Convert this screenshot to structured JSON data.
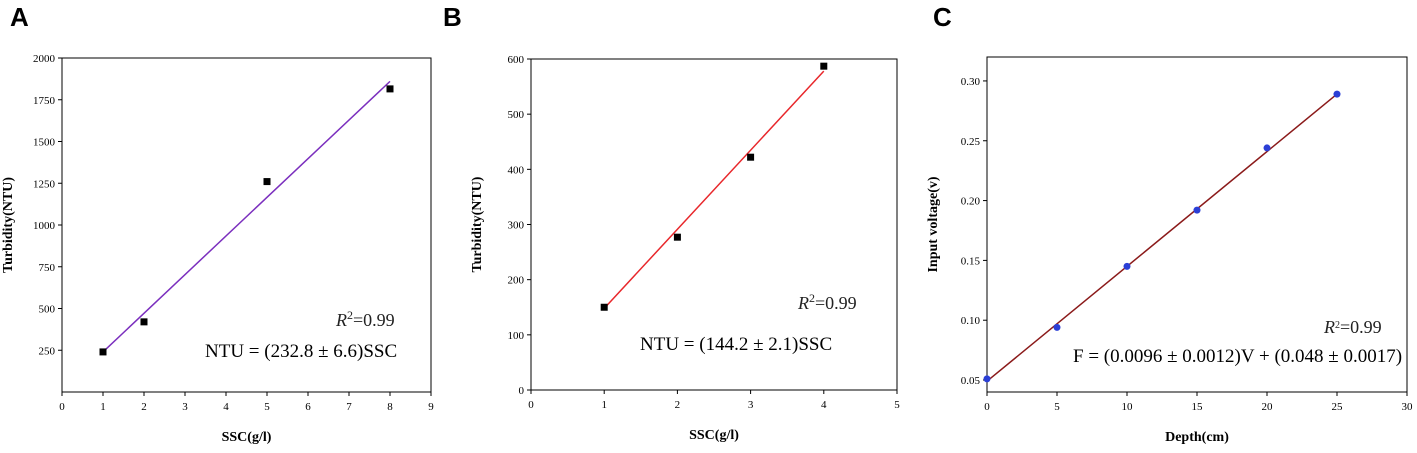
{
  "chart_data": [
    {
      "type": "scatter",
      "panel": "A",
      "xlabel": "SSC(g/l)",
      "ylabel": "Turbidity(NTU)",
      "xlim": [
        0,
        9
      ],
      "ylim": [
        0,
        2000
      ],
      "xticks": [
        0,
        1,
        2,
        3,
        4,
        5,
        6,
        7,
        8,
        9
      ],
      "yticks": [
        250,
        500,
        750,
        1000,
        1250,
        1500,
        1750,
        2000
      ],
      "points": {
        "x": [
          1,
          2,
          5,
          8
        ],
        "y": [
          240,
          420,
          1260,
          1815
        ],
        "marker": "square",
        "color": "#000000"
      },
      "fit": {
        "x": [
          1,
          8
        ],
        "y": [
          240,
          1860
        ],
        "color": "#7b2fbe"
      },
      "r2": "0.99",
      "equation": "NTU = (232.8 ± 6.6)SSC"
    },
    {
      "type": "scatter",
      "panel": "B",
      "xlabel": "SSC(g/l)",
      "ylabel": "Turbidity(NTU)",
      "xlim": [
        0,
        5
      ],
      "ylim": [
        0,
        600
      ],
      "xticks": [
        0,
        1,
        2,
        3,
        4,
        5
      ],
      "yticks": [
        0,
        100,
        200,
        300,
        400,
        500,
        600
      ],
      "points": {
        "x": [
          1,
          2,
          3,
          4
        ],
        "y": [
          150,
          277,
          422,
          587
        ],
        "marker": "square",
        "color": "#000000"
      },
      "fit": {
        "x": [
          1,
          4
        ],
        "y": [
          148,
          578
        ],
        "color": "#e8272b"
      },
      "r2": "0.99",
      "equation": "NTU = (144.2 ± 2.1)SSC"
    },
    {
      "type": "scatter",
      "panel": "C",
      "xlabel": "Depth(cm)",
      "ylabel": "Input voltage(v)",
      "xlim": [
        0,
        30
      ],
      "ylim": [
        0.04,
        0.32
      ],
      "xticks": [
        0,
        5,
        10,
        15,
        20,
        25,
        30
      ],
      "yticks": [
        0.05,
        0.1,
        0.15,
        0.2,
        0.25,
        0.3
      ],
      "ytick_labels": [
        "0.05",
        "0.10",
        "0.15",
        "0.20",
        "0.25",
        "0.30"
      ],
      "points": {
        "x": [
          0,
          5,
          10,
          15,
          20,
          25
        ],
        "y": [
          0.051,
          0.094,
          0.145,
          0.192,
          0.244,
          0.289
        ],
        "marker": "circle",
        "color": "#2b3fd6"
      },
      "fit": {
        "x": [
          0,
          25
        ],
        "y": [
          0.049,
          0.289
        ],
        "color": "#8b1a1a"
      },
      "r2": "0.99",
      "equation": "F = (0.0096 ± 0.0012)V + (0.048 ± 0.0017)"
    }
  ]
}
